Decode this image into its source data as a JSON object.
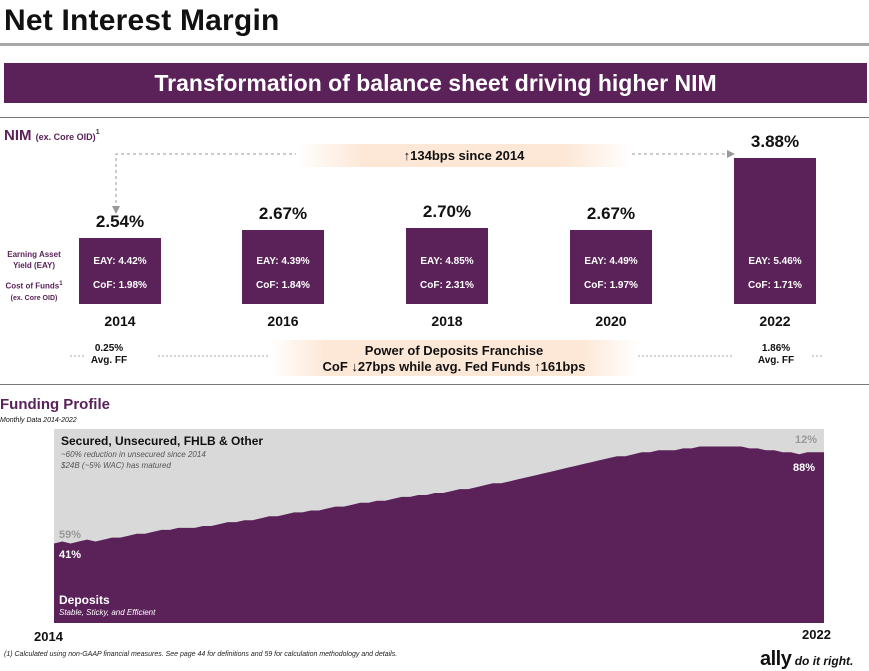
{
  "page": {
    "title": "Net Interest Margin",
    "banner": "Transformation of balance sheet driving higher NIM",
    "footnote": "(1)     Calculated using non-GAAP financial measures. See page 44 for definitions and 59 for calculation methodology and details.",
    "logo_word": "ally",
    "logo_tagline": "do it right."
  },
  "nim_section": {
    "label": "NIM",
    "label_note": "(ex. Core OID)",
    "label_sup": "1",
    "change_callout": "↑134bps since 2014",
    "eay_row_label_1": "Earning Asset",
    "eay_row_label_2": "Yield (EAY)",
    "cof_row_label_1": "Cost of Funds",
    "cof_row_label_sup": "1",
    "cof_row_label_2": "(ex. Core OID)",
    "ff_left_value": "0.25%",
    "ff_left_label": "Avg. FF",
    "ff_right_value": "1.86%",
    "ff_right_label": "Avg. FF",
    "deposits_line1": "Power of Deposits Franchise",
    "deposits_line2": "CoF ↓27bps while avg. Fed Funds ↑161bps"
  },
  "funding_section": {
    "title": "Funding Profile",
    "subtitle": "Monthly Data 2014-2022",
    "secured_title": "Secured, Unsecured, FHLB & Other",
    "secured_note_1": "~60% reduction in unsecured since 2014",
    "secured_note_2": "$24B (~5% WAC) has matured",
    "deposits_title": "Deposits",
    "deposits_note": "Stable, Sticky, and Efficient",
    "start_other_pct": "59%",
    "start_deposit_pct": "41%",
    "end_other_pct": "12%",
    "end_deposit_pct": "88%",
    "start_year": "2014",
    "end_year": "2022"
  },
  "chart_data": [
    {
      "type": "bar",
      "categories": [
        "2014",
        "2016",
        "2018",
        "2020",
        "2022"
      ],
      "values": [
        2.54,
        2.67,
        2.7,
        2.67,
        3.88
      ],
      "value_labels": [
        "2.54%",
        "2.67%",
        "2.70%",
        "2.67%",
        "3.88%"
      ],
      "eay_labels": [
        "EAY: 4.42%",
        "EAY: 4.39%",
        "EAY: 4.85%",
        "EAY: 4.49%",
        "EAY: 5.46%"
      ],
      "cof_labels": [
        "CoF: 1.98%",
        "CoF: 1.84%",
        "CoF: 2.31%",
        "CoF: 1.97%",
        "CoF: 1.71%"
      ],
      "eay": [
        4.42,
        4.39,
        4.85,
        4.49,
        5.46
      ],
      "cof": [
        1.98,
        1.84,
        2.31,
        1.97,
        1.71
      ],
      "title": "NIM (ex. Core OID)",
      "color": "#5a2259"
    },
    {
      "type": "area",
      "stacked_percent": true,
      "x_start": "2014",
      "x_end": "2022",
      "series": [
        {
          "name": "Deposits",
          "color": "#5a2259",
          "values": [
            41,
            42,
            41,
            42,
            43,
            42,
            43,
            44,
            44,
            45,
            46,
            46,
            47,
            48,
            48,
            49,
            49,
            49,
            50,
            50,
            51,
            52,
            52,
            53,
            53,
            54,
            55,
            55,
            56,
            57,
            57,
            58,
            58,
            59,
            60,
            60,
            61,
            62,
            62,
            63,
            63,
            64,
            65,
            65,
            66,
            66,
            67,
            67,
            68,
            69,
            69,
            70,
            71,
            72,
            72,
            73,
            74,
            75,
            76,
            77,
            78,
            79,
            80,
            81,
            82,
            83,
            84,
            85,
            86,
            86,
            87,
            88,
            88,
            89,
            89,
            89,
            90,
            90,
            91,
            91,
            91,
            91,
            91,
            91,
            90,
            90,
            89,
            89,
            88,
            88,
            87,
            88,
            88,
            88
          ]
        },
        {
          "name": "Secured, Unsecured, FHLB & Other",
          "color": "#d9d9d9"
        }
      ]
    }
  ]
}
